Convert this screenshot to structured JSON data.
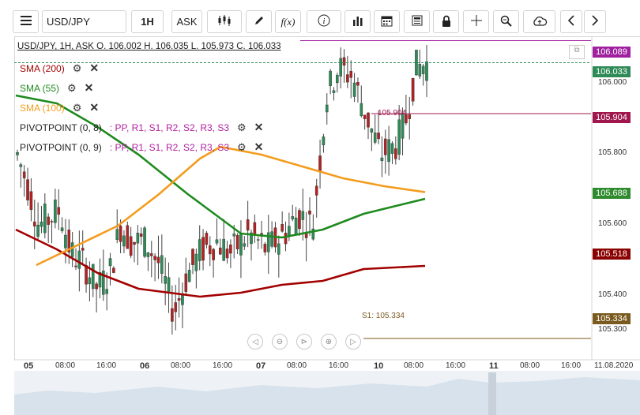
{
  "toolbar": {
    "symbol": "USD/JPY",
    "timeframe": "1H",
    "price_type": "ASK",
    "fx_label": "f(x)",
    "icons": [
      "menu-icon",
      "candles-icon",
      "pencil-icon",
      "fx-icon",
      "info-icon",
      "volume-icon",
      "calendar-icon",
      "news-icon",
      "lock-icon",
      "crosshair-icon",
      "zoom-icon",
      "cloud-upload-icon",
      "chevron-left-icon",
      "chevron-right-icon"
    ]
  },
  "ohlc_line": "USD/JPY, 1H, ASK   O. 106.002 H. 106.035 L. 105.973 C. 106.033",
  "indicators": [
    {
      "name": "SMA (200)",
      "color": "#a30000"
    },
    {
      "name": "SMA (55)",
      "color": "#1e8a1e"
    },
    {
      "name": "SMA (100)",
      "color": "#f39c1d"
    },
    {
      "name": "PIVOTPOINT (0, 8)",
      "legend": ": PP, R1, S1, R2, S2, R3, S3"
    },
    {
      "name": "PIVOTPOINT (0, 9)",
      "legend": ": PP, R1, S1, R2, S2, R3, S3"
    }
  ],
  "pivot_legend_colors": {
    "PP": "#cc00cc",
    "R1": "#2e8b2e",
    "S1": "#2e8b2e",
    "R2": "#222",
    "S2": "#222",
    "R3": "#222",
    "S3": "#cc00cc",
    "S3b": "#3a8fd1"
  },
  "price_scale": {
    "ticks": [
      "106.000",
      "105.800",
      "105.600",
      "105.400",
      "105.300"
    ],
    "labels": [
      {
        "value": "106.089",
        "bg": "#a020a0"
      },
      {
        "value": "106.033",
        "bg": "#2e8b57"
      },
      {
        "value": "105.904",
        "bg": "#a0174e"
      },
      {
        "value": "105.688",
        "bg": "#2e8b2e"
      },
      {
        "value": "105.518",
        "bg": "#8b0000"
      },
      {
        "value": "105.334",
        "bg": "#7a5a1e"
      }
    ]
  },
  "in_chart_labels": {
    "pivot_line": "105.904",
    "s1_line": "S1: 105.334"
  },
  "time_axis": [
    "05",
    "08:00",
    "16:00",
    "06",
    "08:00",
    "16:00",
    "07",
    "08:00",
    "16:00",
    "10",
    "08:00",
    "16:00",
    "11",
    "08:00",
    "16:00",
    "11.08.2020"
  ],
  "chart_data": {
    "type": "candlestick",
    "symbol": "USD/JPY",
    "interval": "1H",
    "price_range": [
      105.28,
      106.1
    ],
    "overlays": [
      {
        "name": "SMA (200)",
        "color": "#a30000"
      },
      {
        "name": "SMA (55)",
        "color": "#1e8a1e"
      },
      {
        "name": "SMA (100)",
        "color": "#f39c1d"
      }
    ],
    "horizontal_levels": [
      {
        "value": 106.089
      },
      {
        "value": 106.033
      },
      {
        "value": 105.904
      },
      {
        "value": 105.334
      }
    ]
  }
}
